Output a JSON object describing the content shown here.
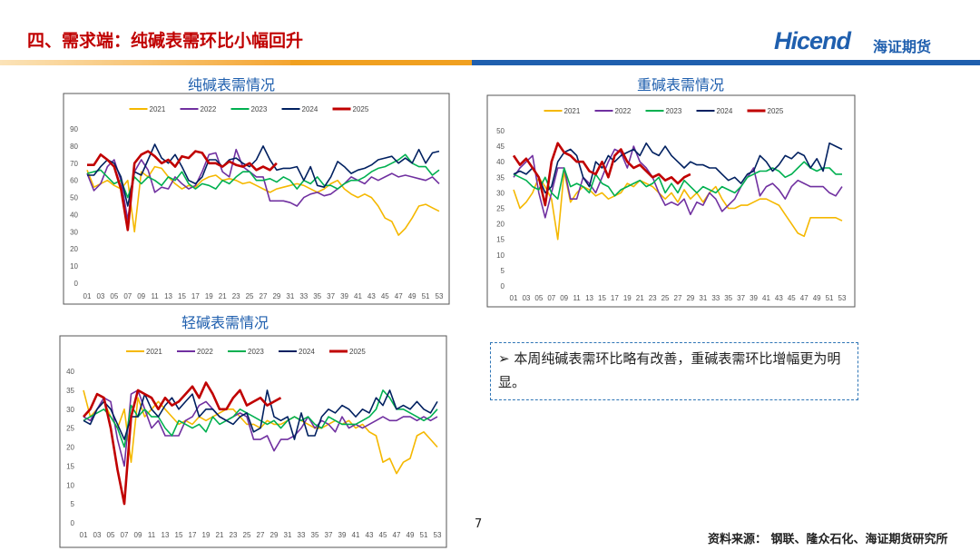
{
  "header": {
    "title": "四、需求端：纯碱表需环比小幅回升",
    "logo": "Hicend",
    "logo_cn": "海证期货"
  },
  "chart_data": [
    {
      "type": "line",
      "title": "纯碱表需情况",
      "categories": [
        "01",
        null,
        "03",
        null,
        "05",
        null,
        "07",
        null,
        "09",
        null,
        "11",
        null,
        "13",
        null,
        "15",
        null,
        "17",
        null,
        "19",
        null,
        "21",
        null,
        "23",
        null,
        "25",
        null,
        "27",
        null,
        "29",
        null,
        "31",
        null,
        "33",
        null,
        "35",
        null,
        "37",
        null,
        "39",
        null,
        "41",
        null,
        "43",
        null,
        "45",
        null,
        "47",
        null,
        "49",
        null,
        "51",
        null,
        "53"
      ],
      "ylim": [
        0,
        90
      ],
      "yticks": [
        0,
        10,
        20,
        30,
        40,
        50,
        60,
        70,
        80,
        90
      ],
      "legend": "top",
      "series": [
        {
          "name": "2021",
          "color": "#f5b800",
          "values": [
            66,
            56,
            58,
            60,
            57,
            55,
            60,
            30,
            65,
            62,
            68,
            67,
            62,
            58,
            55,
            57,
            56,
            60,
            62,
            63,
            60,
            61,
            60,
            58,
            59,
            57,
            55,
            53,
            55,
            56,
            57,
            58,
            57,
            55,
            53,
            55,
            58,
            60,
            55,
            52,
            50,
            52,
            50,
            45,
            38,
            36,
            28,
            32,
            38,
            45,
            46,
            44,
            42
          ]
        },
        {
          "name": "2022",
          "color": "#7030a0",
          "values": [
            64,
            54,
            58,
            68,
            72,
            60,
            37,
            65,
            72,
            66,
            53,
            56,
            55,
            62,
            58,
            55,
            57,
            65,
            75,
            76,
            65,
            62,
            78,
            68,
            65,
            62,
            62,
            48,
            48,
            48,
            47,
            45,
            50,
            52,
            53,
            51,
            52,
            55,
            58,
            62,
            60,
            58,
            62,
            60,
            62,
            64,
            62,
            63,
            62,
            61,
            60,
            62,
            58
          ]
        },
        {
          "name": "2023",
          "color": "#00b050",
          "values": [
            64,
            65,
            66,
            62,
            58,
            60,
            50,
            62,
            58,
            62,
            60,
            57,
            62,
            60,
            65,
            58,
            55,
            58,
            57,
            55,
            60,
            58,
            62,
            65,
            65,
            60,
            60,
            61,
            59,
            62,
            60,
            55,
            60,
            58,
            62,
            57,
            57,
            55,
            58,
            60,
            60,
            62,
            65,
            67,
            68,
            70,
            72,
            75,
            70,
            68,
            68,
            63,
            66
          ]
        },
        {
          "name": "2024",
          "color": "#002060",
          "values": [
            63,
            63,
            68,
            72,
            70,
            62,
            45,
            65,
            63,
            72,
            81,
            73,
            70,
            75,
            68,
            60,
            58,
            62,
            72,
            72,
            68,
            72,
            73,
            70,
            68,
            72,
            80,
            72,
            66,
            67,
            67,
            68,
            60,
            68,
            57,
            56,
            62,
            71,
            68,
            64,
            66,
            67,
            69,
            72,
            73,
            74,
            70,
            73,
            70,
            78,
            70,
            76,
            77
          ]
        },
        {
          "name": "2025",
          "color": "#c00000",
          "values": [
            69,
            69,
            75,
            72,
            68,
            55,
            31,
            70,
            75,
            77,
            74,
            70,
            72,
            68,
            74,
            73,
            77,
            76,
            70,
            70,
            68,
            71,
            69,
            68,
            70,
            66,
            68,
            66,
            70,
            null,
            null,
            null,
            null,
            null,
            null,
            null,
            null,
            null,
            null,
            null,
            null,
            null,
            null,
            null,
            null,
            null,
            null,
            null,
            null,
            null,
            null,
            null,
            null
          ]
        }
      ]
    },
    {
      "type": "line",
      "title": "重碱表需情况",
      "categories": [
        "01",
        null,
        "03",
        null,
        "05",
        null,
        "07",
        null,
        "09",
        null,
        "11",
        null,
        "13",
        null,
        "15",
        null,
        "17",
        null,
        "19",
        null,
        "21",
        null,
        "23",
        null,
        "25",
        null,
        "27",
        null,
        "29",
        null,
        "31",
        null,
        "33",
        null,
        "35",
        null,
        "37",
        null,
        "39",
        null,
        "41",
        null,
        "43",
        null,
        "45",
        null,
        "47",
        null,
        "49",
        null,
        "51",
        null,
        "53"
      ],
      "ylim": [
        0,
        50
      ],
      "yticks": [
        0,
        5,
        10,
        15,
        20,
        25,
        30,
        35,
        40,
        45,
        50
      ],
      "legend": "top",
      "series": [
        {
          "name": "2021",
          "color": "#f5b800",
          "values": [
            31,
            25,
            27,
            30,
            35,
            32,
            28,
            15,
            37,
            27,
            30,
            32,
            31,
            29,
            30,
            28,
            29,
            30,
            33,
            32,
            34,
            33,
            32,
            30,
            28,
            30,
            27,
            31,
            28,
            30,
            27,
            30,
            32,
            28,
            25,
            25,
            26,
            26,
            27,
            28,
            28,
            27,
            26,
            23,
            20,
            17,
            16,
            22,
            22,
            22,
            22,
            22,
            21
          ]
        },
        {
          "name": "2022",
          "color": "#7030a0",
          "values": [
            35,
            38,
            40,
            42,
            30,
            22,
            30,
            38,
            38,
            28,
            28,
            35,
            33,
            30,
            35,
            40,
            44,
            43,
            38,
            45,
            40,
            38,
            35,
            30,
            26,
            27,
            26,
            28,
            23,
            27,
            26,
            30,
            28,
            24,
            26,
            28,
            32,
            35,
            38,
            29,
            32,
            33,
            31,
            28,
            32,
            34,
            33,
            32,
            32,
            32,
            30,
            29,
            32
          ]
        },
        {
          "name": "2023",
          "color": "#00b050",
          "values": [
            36,
            35,
            34,
            32,
            31,
            35,
            30,
            28,
            38,
            32,
            33,
            32,
            30,
            36,
            33,
            32,
            29,
            31,
            32,
            33,
            34,
            32,
            33,
            35,
            30,
            33,
            30,
            34,
            32,
            30,
            32,
            31,
            30,
            32,
            31,
            30,
            32,
            35,
            36,
            37,
            37,
            38,
            37,
            35,
            36,
            38,
            40,
            38,
            37,
            38,
            38,
            36,
            36
          ]
        },
        {
          "name": "2024",
          "color": "#002060",
          "values": [
            36,
            37,
            36,
            38,
            35,
            30,
            32,
            40,
            43,
            44,
            42,
            35,
            32,
            40,
            38,
            42,
            40,
            42,
            43,
            44,
            42,
            46,
            43,
            42,
            45,
            42,
            40,
            38,
            40,
            39,
            39,
            38,
            38,
            36,
            34,
            35,
            33,
            36,
            37,
            42,
            40,
            37,
            39,
            42,
            41,
            43,
            42,
            38,
            41,
            37,
            46,
            45,
            44
          ]
        },
        {
          "name": "2025",
          "color": "#c00000",
          "values": [
            42,
            39,
            41,
            38,
            35,
            26,
            40,
            46,
            43,
            42,
            40,
            40,
            37,
            36,
            40,
            35,
            42,
            44,
            40,
            38,
            39,
            37,
            35,
            36,
            34,
            35,
            33,
            35,
            36,
            null,
            null,
            null,
            null,
            null,
            null,
            null,
            null,
            null,
            null,
            null,
            null,
            null,
            null,
            null,
            null,
            null,
            null,
            null,
            null,
            null,
            null,
            null,
            null
          ]
        }
      ]
    },
    {
      "type": "line",
      "title": "轻碱表需情况",
      "categories": [
        "01",
        null,
        "03",
        null,
        "05",
        null,
        "07",
        null,
        "09",
        null,
        "11",
        null,
        "13",
        null,
        "15",
        null,
        "17",
        null,
        "19",
        null,
        "21",
        null,
        "23",
        null,
        "25",
        null,
        "27",
        null,
        "29",
        null,
        "31",
        null,
        "33",
        null,
        "35",
        null,
        "37",
        null,
        "39",
        null,
        "41",
        null,
        "43",
        null,
        "45",
        null,
        "47",
        null,
        "49",
        null,
        "51",
        null,
        "53"
      ],
      "ylim": [
        0,
        40
      ],
      "yticks": [
        0,
        5,
        10,
        15,
        20,
        25,
        30,
        35,
        40
      ],
      "legend": "top",
      "series": [
        {
          "name": "2021",
          "color": "#f5b800",
          "values": [
            35,
            28,
            30,
            32,
            28,
            25,
            30,
            16,
            33,
            28,
            30,
            32,
            30,
            28,
            26,
            27,
            26,
            28,
            27,
            28,
            29,
            30,
            30,
            28,
            26,
            26,
            25,
            27,
            26,
            26,
            27,
            28,
            27,
            26,
            25,
            25,
            26,
            27,
            26,
            27,
            25,
            26,
            24,
            23,
            16,
            17,
            13,
            16,
            17,
            23,
            24,
            22,
            20
          ]
        },
        {
          "name": "2022",
          "color": "#7030a0",
          "values": [
            28,
            27,
            30,
            33,
            32,
            22,
            15,
            34,
            35,
            30,
            25,
            27,
            23,
            23,
            23,
            27,
            28,
            31,
            32,
            30,
            28,
            27,
            28,
            29,
            28,
            22,
            22,
            23,
            19,
            22,
            22,
            23,
            25,
            28,
            25,
            27,
            26,
            24,
            28,
            25,
            26,
            25,
            26,
            27,
            28,
            27,
            27,
            28,
            28,
            27,
            28,
            27,
            28
          ]
        },
        {
          "name": "2023",
          "color": "#00b050",
          "values": [
            27,
            28,
            29,
            30,
            28,
            25,
            20,
            31,
            28,
            30,
            28,
            28,
            25,
            23,
            27,
            26,
            25,
            26,
            24,
            28,
            26,
            27,
            28,
            30,
            29,
            28,
            27,
            26,
            27,
            25,
            27,
            28,
            27,
            28,
            26,
            25,
            28,
            27,
            26,
            26,
            26,
            27,
            28,
            30,
            35,
            33,
            30,
            30,
            29,
            28,
            27,
            28,
            30
          ]
        },
        {
          "name": "2024",
          "color": "#002060",
          "values": [
            27,
            26,
            30,
            32,
            30,
            26,
            22,
            28,
            28,
            34,
            30,
            28,
            31,
            33,
            30,
            32,
            34,
            28,
            30,
            30,
            28,
            27,
            26,
            28,
            29,
            24,
            25,
            35,
            28,
            27,
            28,
            22,
            29,
            23,
            23,
            28,
            30,
            29,
            31,
            30,
            28,
            30,
            29,
            33,
            31,
            35,
            30,
            31,
            30,
            32,
            30,
            29,
            32
          ]
        },
        {
          "name": "2025",
          "color": "#c00000",
          "values": [
            28,
            30,
            34,
            33,
            25,
            14,
            5,
            28,
            35,
            34,
            33,
            30,
            33,
            31,
            32,
            34,
            36,
            33,
            37,
            34,
            30,
            30,
            33,
            35,
            31,
            32,
            33,
            31,
            32,
            33,
            null,
            null,
            null,
            null,
            null,
            null,
            null,
            null,
            null,
            null,
            null,
            null,
            null,
            null,
            null,
            null,
            null,
            null,
            null,
            null,
            null,
            null,
            null
          ]
        }
      ]
    }
  ],
  "bullet": "本周纯碱表需环比略有改善，重碱表需环比增幅更为明显。",
  "page_number": "7",
  "source": "资料来源： 钢联、隆众石化、海证期货研究所"
}
